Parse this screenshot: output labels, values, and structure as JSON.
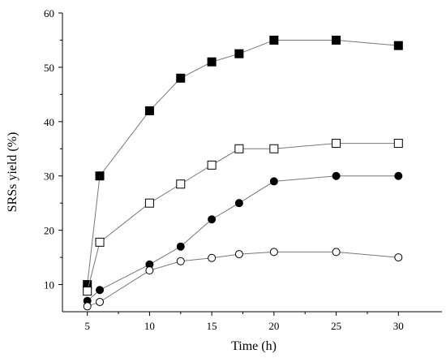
{
  "chart_data": {
    "type": "line",
    "title": "",
    "xlabel": "Time (h)",
    "ylabel": "SRSs yield (%)",
    "xlim": [
      3,
      33.5
    ],
    "ylim": [
      5,
      60
    ],
    "x_ticks": [
      5,
      10,
      15,
      20,
      25,
      30
    ],
    "y_ticks": [
      10,
      20,
      30,
      40,
      50,
      60
    ],
    "grid": false,
    "legend": "none",
    "series": [
      {
        "marker": "filled-square",
        "x": [
          5,
          6,
          10,
          12.5,
          15,
          17.2,
          20,
          25,
          30
        ],
        "y": [
          10,
          30,
          42,
          48,
          51,
          52.5,
          55,
          55,
          54
        ]
      },
      {
        "marker": "open-square",
        "x": [
          5,
          6,
          10,
          12.5,
          15,
          17.2,
          20,
          25,
          30
        ],
        "y": [
          8.8,
          17.8,
          25,
          28.5,
          32,
          35,
          35,
          36,
          36
        ]
      },
      {
        "marker": "filled-circle",
        "x": [
          5,
          6,
          10,
          12.5,
          15,
          17.2,
          20,
          25,
          30
        ],
        "y": [
          7,
          9,
          13.7,
          17,
          22,
          25,
          29,
          30,
          30
        ]
      },
      {
        "marker": "open-circle",
        "x": [
          5,
          6,
          10,
          12.5,
          15,
          17.2,
          20,
          25,
          30
        ],
        "y": [
          6,
          6.8,
          12.6,
          14.3,
          14.9,
          15.6,
          16,
          16,
          15
        ]
      }
    ]
  }
}
